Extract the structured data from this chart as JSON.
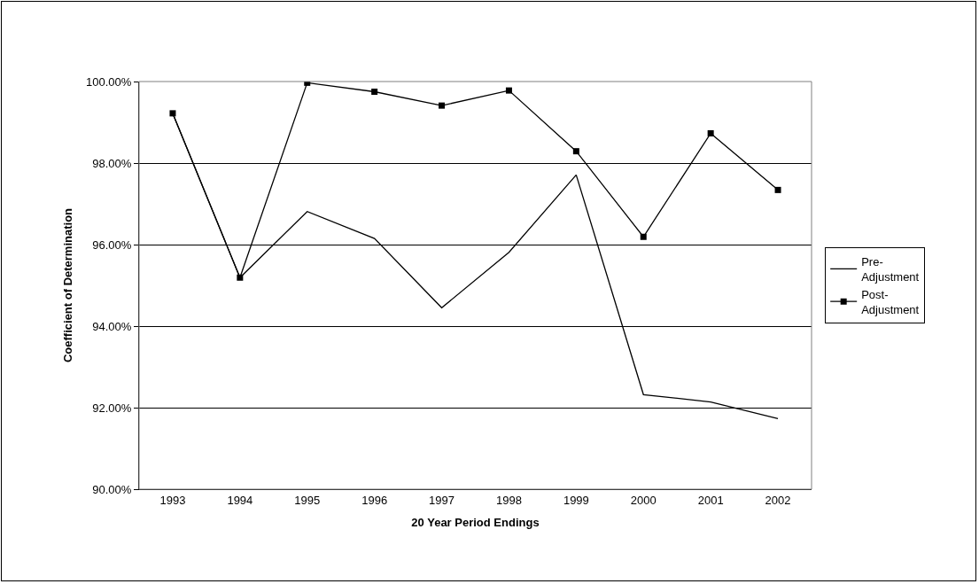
{
  "chart_data": {
    "type": "line",
    "xlabel": "20 Year Period Endings",
    "ylabel": "Coefficient of Determination",
    "categories": [
      "1993",
      "1994",
      "1995",
      "1996",
      "1997",
      "1998",
      "1999",
      "2000",
      "2001",
      "2002"
    ],
    "series": [
      {
        "name": "Pre-Adjustment",
        "color": "#000000",
        "marker": "none",
        "values": [
          99.22,
          95.19,
          96.81,
          96.15,
          94.45,
          95.81,
          97.71,
          92.32,
          92.14,
          91.73
        ]
      },
      {
        "name": "Post-Adjustment",
        "color": "#000000",
        "marker": "square",
        "values": [
          99.22,
          95.19,
          99.97,
          99.75,
          99.41,
          99.78,
          98.29,
          96.19,
          98.73,
          97.34
        ]
      }
    ],
    "ylim": [
      90,
      100
    ],
    "yticks": [
      {
        "value": 90,
        "label": "90.00%"
      },
      {
        "value": 92,
        "label": "92.00%"
      },
      {
        "value": 94,
        "label": "94.00%"
      },
      {
        "value": 96,
        "label": "96.00%"
      },
      {
        "value": 98,
        "label": "98.00%"
      },
      {
        "value": 100,
        "label": "100.00%"
      }
    ],
    "grid": "y",
    "legend": "right",
    "line_style": "solid"
  }
}
